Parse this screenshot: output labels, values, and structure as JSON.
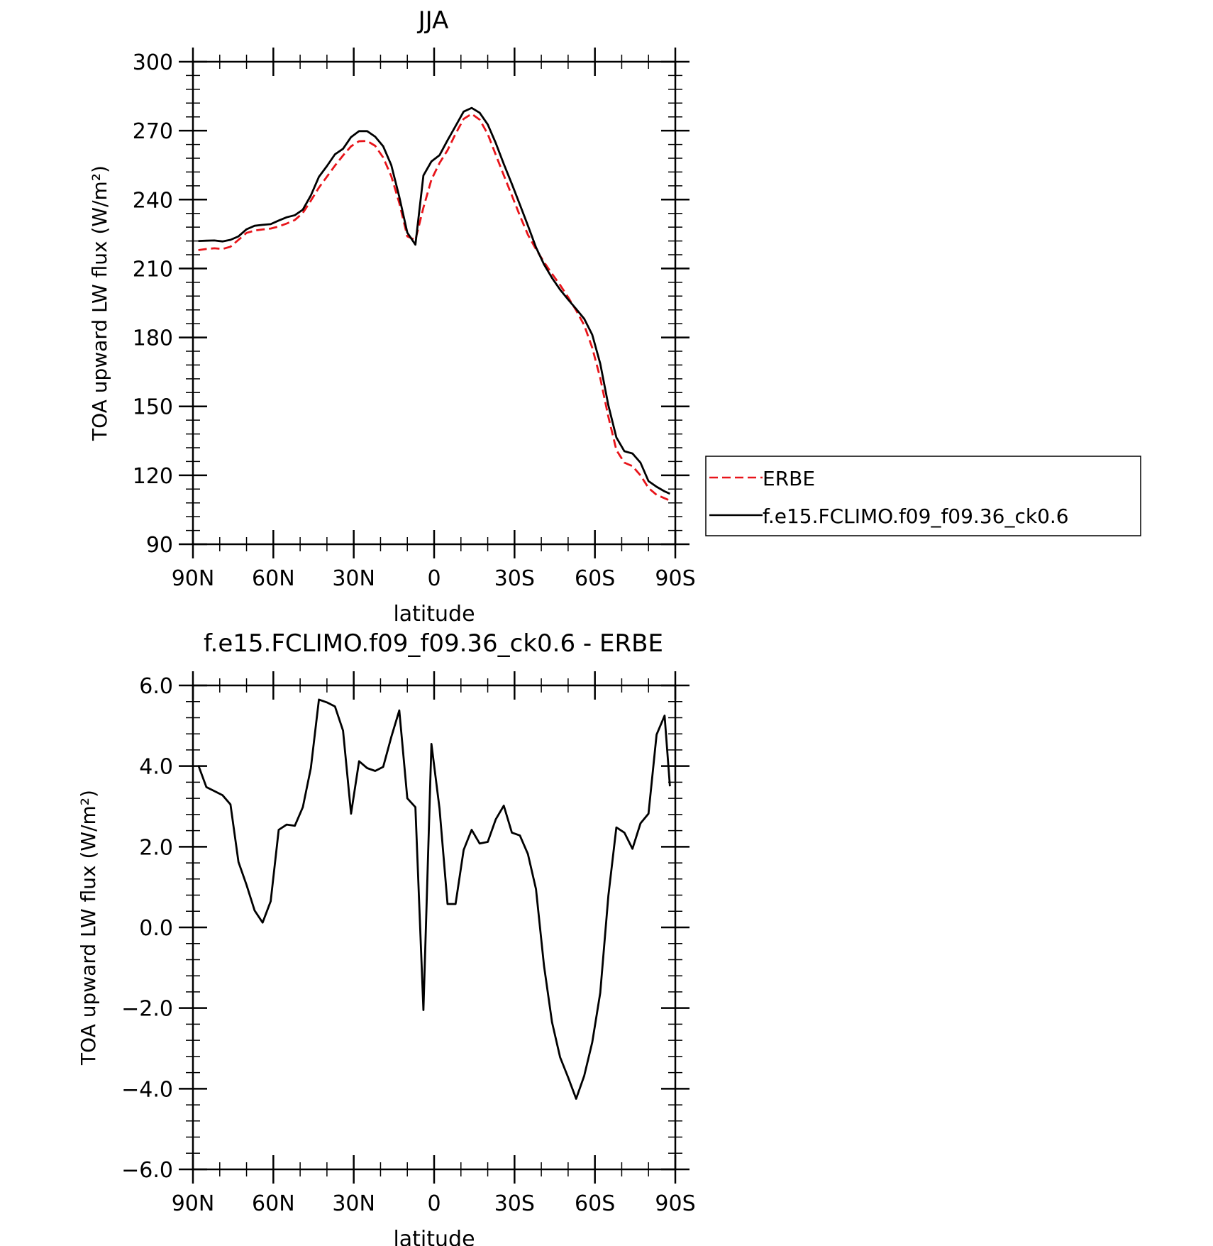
{
  "chart_data": [
    {
      "type": "line",
      "title": "JJA",
      "xlabel": "latitude",
      "ylabel": "TOA upward LW flux (W/m²)",
      "xlim": [
        90,
        -90
      ],
      "ylim": [
        90,
        300
      ],
      "x_ticks": [
        90,
        60,
        30,
        0,
        -30,
        -60,
        -90
      ],
      "x_tick_labels": [
        "90N",
        "60N",
        "30N",
        "0",
        "30S",
        "60S",
        "90S"
      ],
      "y_ticks": [
        90,
        120,
        150,
        180,
        210,
        240,
        270,
        300
      ],
      "y_tick_labels": [
        "90",
        "120",
        "150",
        "180",
        "210",
        "240",
        "270",
        "300"
      ],
      "grid": false,
      "legend_position": "outside-right",
      "x": [
        88,
        85,
        82,
        79,
        76,
        73,
        70,
        67,
        64,
        61,
        58,
        55,
        52,
        49,
        46,
        43,
        40,
        37,
        34,
        31,
        28,
        25,
        22,
        19,
        16,
        13,
        10,
        7,
        4,
        1,
        -2,
        -5,
        -8,
        -11,
        -14,
        -17,
        -20,
        -23,
        -26,
        -29,
        -32,
        -35,
        -38,
        -41,
        -44,
        -47,
        -50,
        -53,
        -56,
        -59,
        -62,
        -65,
        -68,
        -71,
        -74,
        -77,
        -80,
        -83,
        -86,
        -88
      ],
      "series": [
        {
          "name": "ERBE",
          "color": "#e8141a",
          "dash": "dashed",
          "values": [
            218,
            218.5,
            218.8,
            218.5,
            219.5,
            222.5,
            225.5,
            226.5,
            227,
            227.4,
            228.3,
            229.6,
            231.1,
            234.2,
            239.5,
            245.2,
            250,
            254.8,
            259.2,
            263.2,
            265.4,
            265.5,
            263.4,
            258.3,
            250.2,
            238.5,
            224,
            222.4,
            236.5,
            248.7,
            255.9,
            261.5,
            268.6,
            275.1,
            277.3,
            274.8,
            268.5,
            259.5,
            250.6,
            241.8,
            233,
            224.7,
            218.4,
            212.8,
            207.7,
            202.8,
            197.5,
            191.8,
            185.3,
            175.5,
            162.3,
            145.5,
            131,
            125.5,
            124,
            120,
            114.5,
            111.5,
            110,
            109
          ]
        },
        {
          "name": "f.e15.FCLIMO.f09_f09.36_ck0.6",
          "color": "#000000",
          "dash": "solid",
          "values": [
            222,
            222.1,
            222.2,
            221.8,
            222.5,
            224,
            227.1,
            228.6,
            229,
            229.3,
            230.9,
            232.3,
            233.2,
            235.6,
            241.8,
            249.9,
            254.6,
            259.7,
            262.1,
            267.2,
            269.8,
            269.8,
            267.4,
            263.2,
            255,
            241.2,
            225.6,
            220.4,
            250.5,
            256.6,
            259.3,
            265.8,
            272,
            278.3,
            279.9,
            277.8,
            272.7,
            264.6,
            255.5,
            246.8,
            237.8,
            228.7,
            219.2,
            211.8,
            205.9,
            200.8,
            196.5,
            192.4,
            188.1,
            181.2,
            168.6,
            150.5,
            136.5,
            130.5,
            129.5,
            125.5,
            117.5,
            115,
            113,
            112
          ]
        }
      ]
    },
    {
      "type": "line",
      "title": "f.e15.FCLIMO.f09_f09.36_ck0.6 - ERBE",
      "xlabel": "latitude",
      "ylabel": "TOA upward LW flux (W/m²)",
      "xlim": [
        90,
        -90
      ],
      "ylim": [
        -6,
        6
      ],
      "x_ticks": [
        90,
        60,
        30,
        0,
        -30,
        -60,
        -90
      ],
      "x_tick_labels": [
        "90N",
        "60N",
        "30N",
        "0",
        "30S",
        "60S",
        "90S"
      ],
      "y_ticks": [
        -6,
        -4,
        -2,
        0,
        2,
        4,
        6
      ],
      "y_tick_labels": [
        "−6.0",
        "−4.0",
        "−2.0",
        "0.0",
        "2.0",
        "4.0",
        "6.0"
      ],
      "grid": false,
      "x": [
        88,
        85,
        82,
        79,
        76,
        73,
        70,
        67,
        64,
        61,
        58,
        55,
        52,
        49,
        46,
        43,
        40,
        37,
        34,
        31,
        28,
        25,
        22,
        19,
        16,
        13,
        10,
        7,
        4,
        1,
        -2,
        -5,
        -8,
        -11,
        -14,
        -17,
        -20,
        -23,
        -26,
        -29,
        -32,
        -35,
        -38,
        -41,
        -44,
        -47,
        -50,
        -53,
        -56,
        -59,
        -62,
        -65,
        -68,
        -71,
        -74,
        -77,
        -80,
        -83,
        -86,
        -88
      ],
      "series": [
        {
          "color": "#000000",
          "dash": "solid",
          "values": [
            4.02,
            3.48,
            3.38,
            3.28,
            3.05,
            1.62,
            1.05,
            0.42,
            0.12,
            0.65,
            2.42,
            2.55,
            2.52,
            2.98,
            3.95,
            5.65,
            5.58,
            5.48,
            4.88,
            2.82,
            4.12,
            3.95,
            3.88,
            3.98,
            4.72,
            5.38,
            3.2,
            2.98,
            -2.05,
            4.55,
            2.95,
            0.58,
            0.58,
            1.92,
            2.42,
            2.08,
            2.12,
            2.68,
            3.02,
            2.35,
            2.28,
            1.82,
            0.95,
            -0.95,
            -2.35,
            -3.22,
            -3.72,
            -4.25,
            -3.68,
            -2.85,
            -1.62,
            0.78,
            2.48,
            2.35,
            1.95,
            2.58,
            2.82,
            4.78,
            5.25,
            3.5
          ]
        }
      ]
    }
  ]
}
